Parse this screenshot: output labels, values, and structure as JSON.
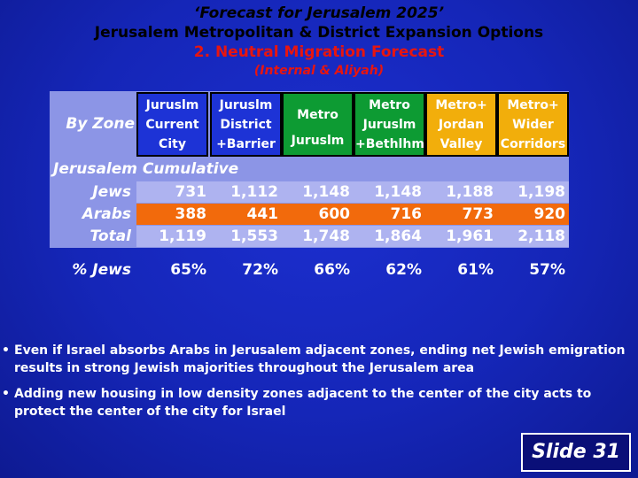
{
  "title": {
    "line1": "‘Forecast for Jerusalem 2025’",
    "line2": "Jerusalem Metropolitan & District Expansion Options",
    "line3": "2. Neutral Migration Forecast",
    "line4": "(Internal & Aliyah)"
  },
  "table": {
    "corner_label": "By Zone",
    "columns": [
      {
        "lines": [
          "Juruslm",
          "Current",
          "City"
        ]
      },
      {
        "lines": [
          "Juruslm",
          "District",
          "+Barrier"
        ]
      },
      {
        "lines": [
          "",
          "Metro",
          "Juruslm"
        ]
      },
      {
        "lines": [
          "Metro",
          "Juruslm",
          "+Bethlhm"
        ]
      },
      {
        "lines": [
          "Metro+",
          "Jordan",
          "Valley"
        ]
      },
      {
        "lines": [
          "Metro+",
          "Wider",
          "Corridors"
        ]
      }
    ],
    "section_label": "Jerusalem Cumulative",
    "rows": [
      {
        "label": "Jews",
        "values": [
          "731",
          "1,112",
          "1,148",
          "1,148",
          "1,188",
          "1,198"
        ]
      },
      {
        "label": "Arabs",
        "values": [
          "388",
          "441",
          "600",
          "716",
          "773",
          "920"
        ]
      },
      {
        "label": "Total",
        "values": [
          "1,119",
          "1,553",
          "1,748",
          "1,864",
          "1,961",
          "2,118"
        ]
      }
    ],
    "pct_row": {
      "label": "% Jews",
      "values": [
        "65%",
        "72%",
        "66%",
        "62%",
        "61%",
        "57%"
      ]
    }
  },
  "colors": {
    "header_blue": "#1d33d6",
    "header_green": "#0d9b33",
    "header_gold": "#f2ae0b",
    "arabs_row": "#f26a0c",
    "panel": "#8c95e6",
    "title_red": "#e8150f"
  },
  "bullets": [
    {
      "marker": "•",
      "text": "Even if Israel absorbs Arabs in Jerusalem adjacent zones, ending net Jewish emigration results in strong Jewish majorities throughout the Jerusalem area"
    },
    {
      "marker": "•",
      "text": "Adding new housing in low density zones adjacent to the center of the city acts to protect the center of the city for Israel"
    }
  ],
  "slide_label": "Slide 31"
}
